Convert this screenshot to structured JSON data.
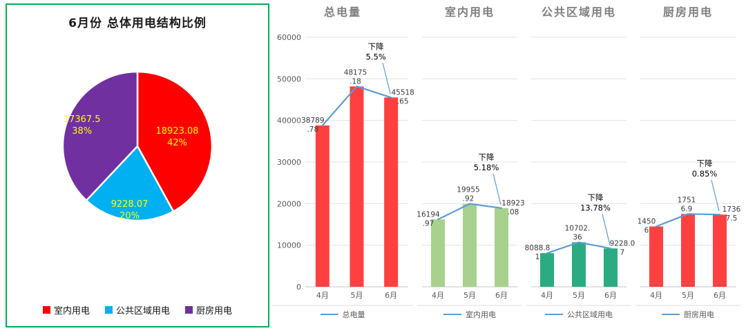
{
  "panel": {
    "border_color": "#00B050",
    "pie_label_color": "#FFFF00",
    "legend": [
      {
        "label": "室内用电",
        "color": "#FF0000"
      },
      {
        "label": "公共区域用电",
        "color": "#00B0F0"
      },
      {
        "label": "厨房用电",
        "color": "#7030A0"
      }
    ]
  },
  "chart_data": [
    {
      "type": "pie",
      "title": "6月份 总体用电结构比例",
      "labels": [
        "室内用电",
        "公共区域用电",
        "厨房用电"
      ],
      "values": [
        18923.08,
        9228.07,
        17367.5
      ],
      "percents": [
        42,
        20,
        38
      ],
      "data_labels": [
        [
          "18923.08",
          "42%"
        ],
        [
          "9228.07",
          "20%"
        ],
        [
          "17367.5",
          "38%"
        ]
      ],
      "colors": [
        "#FF0000",
        "#00B0F0",
        "#7030A0"
      ],
      "legend_position": "bottom"
    },
    {
      "type": "bar",
      "title": "总电量",
      "legend": "总电量",
      "categories": [
        "4月",
        "5月",
        "6月"
      ],
      "values": [
        38789.78,
        48175.18,
        45518.65
      ],
      "data_labels": [
        [
          "38789",
          ".78"
        ],
        [
          "48175",
          ".18"
        ],
        [
          "45518",
          ".65"
        ]
      ],
      "annotation": [
        "下降",
        "5.5%"
      ],
      "bar_color": "#FF4040",
      "line_color": "#5B9BD5",
      "ylim": [
        0,
        60000
      ],
      "yticks": [
        "0",
        "10000",
        "20000",
        "30000",
        "40000",
        "50000",
        "60000"
      ],
      "show_y_axis": true,
      "grid": true
    },
    {
      "type": "bar",
      "title": "室内用电",
      "legend": "室内用电",
      "categories": [
        "4月",
        "5月",
        "6月"
      ],
      "values": [
        16194.97,
        19955.92,
        18923.08
      ],
      "data_labels": [
        [
          "16194",
          ".97"
        ],
        [
          "19955",
          ".92"
        ],
        [
          "18923",
          ".08"
        ]
      ],
      "annotation": [
        "下降",
        "5.18%"
      ],
      "bar_color": "#A9D18E",
      "line_color": "#5B9BD5",
      "ylim": [
        0,
        60000
      ],
      "show_y_axis": false,
      "grid": true
    },
    {
      "type": "bar",
      "title": "公共区域用电",
      "legend": "公共区域用电",
      "categories": [
        "4月",
        "5月",
        "6月"
      ],
      "values": [
        8088.81,
        10702.36,
        9228.07
      ],
      "data_labels": [
        [
          "8088.8",
          "1"
        ],
        [
          "10702.",
          "36"
        ],
        [
          "9228.0",
          "7"
        ]
      ],
      "annotation": [
        "下降",
        "13.78%"
      ],
      "bar_color": "#2BAB82",
      "line_color": "#5B9BD5",
      "ylim": [
        0,
        60000
      ],
      "show_y_axis": false,
      "grid": true
    },
    {
      "type": "bar",
      "title": "厨房用电",
      "legend": "厨房用电",
      "categories": [
        "4月",
        "5月",
        "6月"
      ],
      "values": [
        14506,
        17516.9,
        17367.5
      ],
      "data_labels": [
        [
          "1450",
          "6"
        ],
        [
          "1751",
          "6.9"
        ],
        [
          "1736",
          "7.5"
        ]
      ],
      "annotation": [
        "下降",
        "0.85%"
      ],
      "bar_color": "#FF4040",
      "line_color": "#5B9BD5",
      "ylim": [
        0,
        60000
      ],
      "show_y_axis": false,
      "grid": true
    }
  ]
}
